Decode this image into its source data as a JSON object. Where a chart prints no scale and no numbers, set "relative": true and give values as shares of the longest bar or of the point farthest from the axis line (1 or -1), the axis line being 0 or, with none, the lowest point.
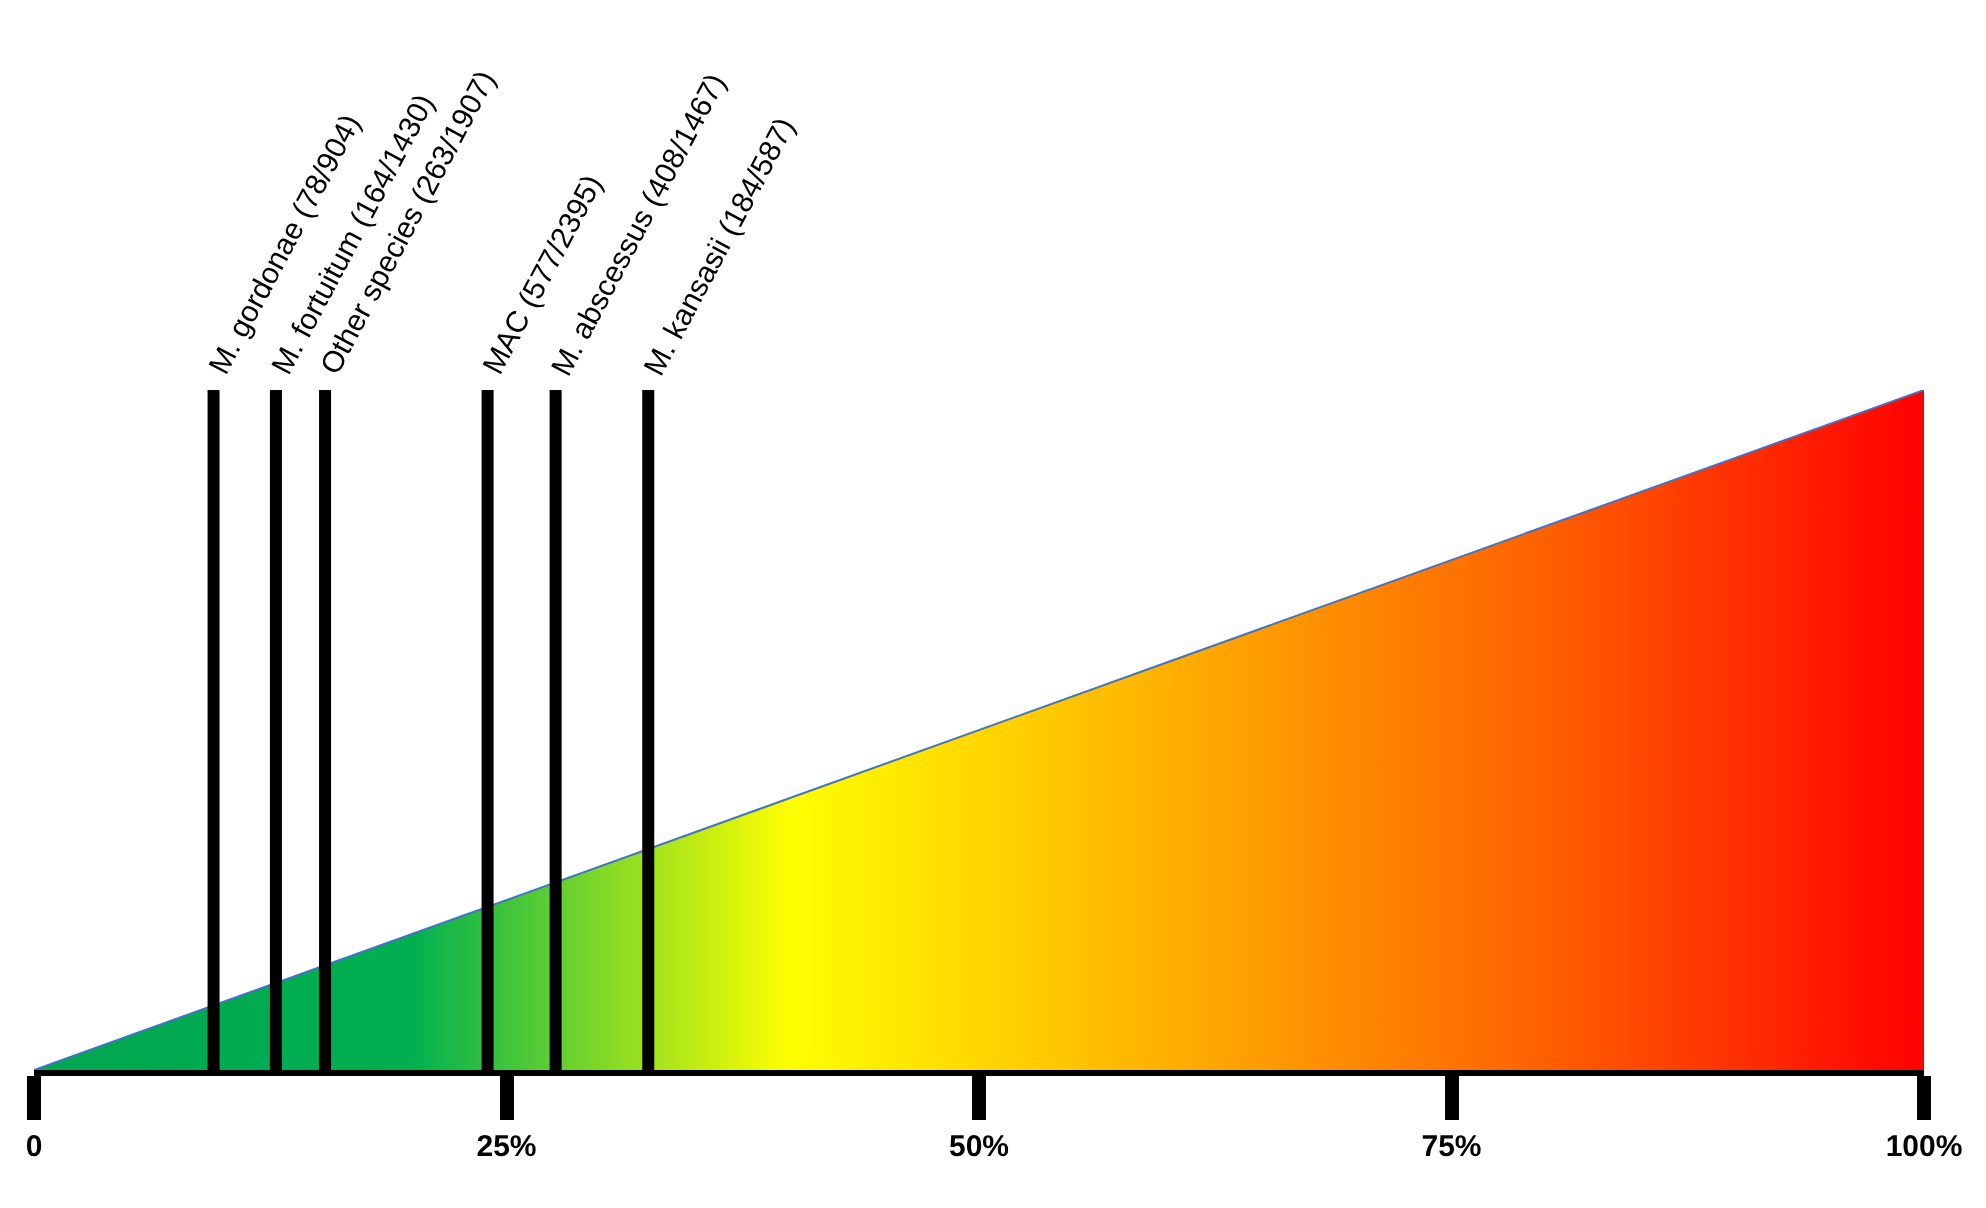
{
  "chart_data": {
    "type": "area",
    "relative": true,
    "x": [
      0,
      20,
      40,
      60,
      80,
      100
    ],
    "series": [
      {
        "color": "#4472c4",
        "colors": [
          "#00a650",
          "#00b050",
          "#ffff00",
          "#ffb000",
          "#ff6000",
          "#ff0000"
        ],
        "values": [
          0,
          0.2,
          0.4,
          0.6,
          0.8,
          1
        ]
      }
    ],
    "xlim": [
      0,
      100
    ],
    "xticks": [
      {
        "value": 0,
        "label": "0"
      },
      {
        "value": 25,
        "label": "25%"
      },
      {
        "value": 50,
        "label": "50%"
      },
      {
        "value": 75,
        "label": "75%"
      },
      {
        "value": 100,
        "label": "100%"
      }
    ],
    "ref_lines": [
      {
        "axis": "x",
        "value": 9.5,
        "label": "M. gordonae (78/904)",
        "color": "#000000"
      },
      {
        "axis": "x",
        "value": 12.8,
        "label": "M. fortuitum (164/1430)",
        "color": "#000000"
      },
      {
        "axis": "x",
        "value": 15.4,
        "label": "Other species (263/1907)",
        "color": "#000000"
      },
      {
        "axis": "x",
        "value": 24,
        "label": "MAC (577/2395)",
        "color": "#000000"
      },
      {
        "axis": "x",
        "value": 27.6,
        "label": "M. abscessus (408/1467)",
        "color": "#000000"
      },
      {
        "axis": "x",
        "value": 32.5,
        "label": "M. kansasii (184/587)",
        "color": "#000000"
      }
    ],
    "legend": false
  }
}
